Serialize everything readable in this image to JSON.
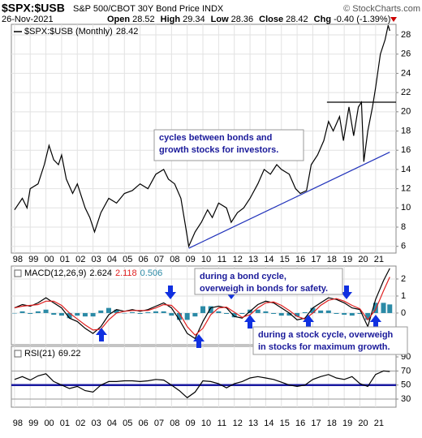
{
  "header": {
    "symbol": "$SPX:$USB",
    "name": "S&P 500/CBOT 30Y Bond Price INDX",
    "copyright": "© StockCharts.com",
    "date": "26-Nov-2021",
    "quote": [
      {
        "label": "Open",
        "value": "28.52"
      },
      {
        "label": "High",
        "value": "29.34"
      },
      {
        "label": "Low",
        "value": "28.36"
      },
      {
        "label": "Close",
        "value": "28.42"
      },
      {
        "label": "Chg",
        "value": "-0.40 (-1.39%)"
      }
    ]
  },
  "chart_data": [
    {
      "type": "line",
      "x": [
        1998.0,
        1998.5,
        1998.8,
        1999.0,
        1999.5,
        1999.9,
        2000.2,
        2000.5,
        2000.8,
        2001.0,
        2001.3,
        2001.7,
        2002.0,
        2002.5,
        2002.8,
        2003.1,
        2003.5,
        2004.0,
        2004.5,
        2005.0,
        2005.5,
        2006.0,
        2006.5,
        2007.0,
        2007.5,
        2007.8,
        2008.2,
        2008.6,
        2008.9,
        2009.1,
        2009.5,
        2009.9,
        2010.3,
        2010.6,
        2011.0,
        2011.5,
        2011.8,
        2012.2,
        2012.6,
        2013.0,
        2013.5,
        2013.9,
        2014.3,
        2014.7,
        2015.0,
        2015.5,
        2015.9,
        2016.2,
        2016.6,
        2016.9,
        2017.3,
        2017.7,
        2018.0,
        2018.3,
        2018.7,
        2018.95,
        2019.3,
        2019.6,
        2019.9,
        2020.1,
        2020.25,
        2020.5,
        2020.8,
        2021.0,
        2021.3,
        2021.6,
        2021.8,
        2021.9
      ],
      "series": [
        {
          "name": "$SPX:$USB (Monthly)",
          "color": "#000000",
          "values": [
            9.8,
            11.0,
            10.0,
            12.0,
            12.5,
            14.5,
            16.5,
            15.0,
            14.5,
            15.5,
            13.0,
            11.5,
            12.5,
            10.0,
            9.0,
            7.5,
            9.5,
            11.0,
            10.5,
            11.5,
            11.8,
            12.5,
            12.0,
            13.5,
            14.0,
            13.0,
            12.5,
            11.0,
            8.0,
            6.0,
            7.5,
            8.5,
            9.8,
            9.0,
            10.5,
            10.0,
            8.5,
            9.5,
            10.0,
            11.0,
            12.5,
            14.0,
            13.5,
            14.5,
            14.0,
            13.5,
            12.0,
            11.5,
            11.8,
            14.5,
            15.5,
            17.0,
            19.0,
            18.0,
            19.5,
            17.0,
            20.5,
            17.5,
            20.5,
            21.0,
            14.8,
            18.0,
            20.5,
            22.5,
            26.0,
            27.5,
            29.0,
            28.42
          ]
        }
      ],
      "xlim": [
        1997.8,
        2022.3
      ],
      "ylim": [
        5.3,
        29.1
      ],
      "xticks": [
        {
          "value": 1998,
          "label": "98"
        },
        {
          "value": 1999,
          "label": "99"
        },
        {
          "value": 2000,
          "label": "00"
        },
        {
          "value": 2001,
          "label": "01"
        },
        {
          "value": 2002,
          "label": "02"
        },
        {
          "value": 2003,
          "label": "03"
        },
        {
          "value": 2004,
          "label": "04"
        },
        {
          "value": 2005,
          "label": "05"
        },
        {
          "value": 2006,
          "label": "06"
        },
        {
          "value": 2007,
          "label": "07"
        },
        {
          "value": 2008,
          "label": "08"
        },
        {
          "value": 2009,
          "label": "09"
        },
        {
          "value": 2010,
          "label": "10"
        },
        {
          "value": 2011,
          "label": "11"
        },
        {
          "value": 2012,
          "label": "12"
        },
        {
          "value": 2013,
          "label": "13"
        },
        {
          "value": 2014,
          "label": "14"
        },
        {
          "value": 2015,
          "label": "15"
        },
        {
          "value": 2016,
          "label": "16"
        },
        {
          "value": 2017,
          "label": "17"
        },
        {
          "value": 2018,
          "label": "18"
        },
        {
          "value": 2019,
          "label": "19"
        },
        {
          "value": 2020,
          "label": "20"
        },
        {
          "value": 2021,
          "label": "21"
        }
      ],
      "yticks": [
        6,
        8,
        10,
        12,
        14,
        16,
        18,
        20,
        22,
        24,
        26,
        28
      ],
      "grid": true,
      "trendlines": [
        {
          "color": "#2233bb",
          "x": [
            2009.1,
            2021.9
          ],
          "y": [
            5.8,
            15.8
          ]
        },
        {
          "color": "#000000",
          "x": [
            2017.9,
            2022.3
          ],
          "y": [
            21,
            21
          ]
        }
      ],
      "annotations": [
        {
          "lines": [
            "cycles between bonds and",
            "growth stocks for investors."
          ]
        }
      ]
    },
    {
      "type": "macd",
      "title": "MACD(12,26,9)",
      "x": [
        1998.0,
        1998.5,
        1999.0,
        1999.5,
        2000.0,
        2000.5,
        2001.0,
        2001.5,
        2002.0,
        2002.5,
        2003.0,
        2003.5,
        2004.0,
        2004.5,
        2005.0,
        2005.5,
        2006.0,
        2006.5,
        2007.0,
        2007.5,
        2008.0,
        2008.5,
        2009.0,
        2009.5,
        2010.0,
        2010.5,
        2011.0,
        2011.5,
        2012.0,
        2012.5,
        2013.0,
        2013.5,
        2014.0,
        2014.5,
        2015.0,
        2015.5,
        2016.0,
        2016.5,
        2017.0,
        2017.5,
        2018.0,
        2018.5,
        2019.0,
        2019.5,
        2020.0,
        2020.5,
        2021.0,
        2021.5,
        2021.9
      ],
      "series": [
        {
          "color": "#000000",
          "kind": "line",
          "values": [
            0.3,
            0.5,
            0.4,
            0.6,
            0.9,
            0.6,
            0.3,
            -0.3,
            -0.5,
            -0.9,
            -1.2,
            -0.8,
            -0.1,
            0.2,
            0.1,
            0.2,
            0.1,
            0.2,
            0.4,
            0.6,
            0.3,
            -0.4,
            -1.2,
            -1.5,
            -0.5,
            0.3,
            0.4,
            0.3,
            -0.2,
            -0.3,
            0.1,
            0.5,
            0.7,
            0.6,
            0.3,
            0.0,
            -0.4,
            -0.3,
            0.3,
            0.6,
            0.9,
            0.8,
            0.6,
            0.3,
            0.2,
            -0.8,
            0.8,
            1.9,
            2.624
          ]
        },
        {
          "color": "#e02020",
          "kind": "line",
          "values": [
            0.3,
            0.4,
            0.45,
            0.5,
            0.7,
            0.7,
            0.45,
            0.0,
            -0.35,
            -0.7,
            -1.0,
            -0.95,
            -0.4,
            0.0,
            0.1,
            0.15,
            0.15,
            0.15,
            0.3,
            0.5,
            0.45,
            0.0,
            -0.8,
            -1.3,
            -0.9,
            -0.1,
            0.3,
            0.35,
            0.05,
            -0.25,
            -0.1,
            0.3,
            0.6,
            0.65,
            0.45,
            0.15,
            -0.2,
            -0.35,
            0.0,
            0.45,
            0.75,
            0.85,
            0.7,
            0.45,
            0.25,
            -0.4,
            0.2,
            1.3,
            2.118
          ]
        },
        {
          "color": "#2b8aa6",
          "kind": "histogram",
          "values": [
            0.0,
            0.1,
            -0.05,
            0.1,
            0.2,
            -0.1,
            -0.15,
            -0.3,
            -0.15,
            -0.2,
            -0.2,
            0.15,
            0.3,
            0.2,
            0.0,
            0.05,
            -0.05,
            0.05,
            0.1,
            0.1,
            -0.15,
            -0.4,
            -0.4,
            -0.2,
            0.4,
            0.4,
            0.1,
            -0.05,
            -0.25,
            -0.05,
            0.2,
            0.2,
            0.1,
            -0.05,
            -0.15,
            -0.15,
            -0.2,
            0.05,
            0.3,
            0.15,
            0.15,
            -0.05,
            -0.1,
            -0.15,
            -0.05,
            -0.4,
            0.6,
            0.6,
            0.506
          ]
        }
      ],
      "xlim": [
        1997.8,
        2022.3
      ],
      "ylim": [
        -1.86,
        2.76
      ],
      "yticks": [
        0,
        1,
        2
      ],
      "grid": true,
      "annotations": [
        {
          "lines": [
            "during a bond cycle,",
            "overweigh in bonds for safety."
          ]
        },
        {
          "lines": [
            "during a stock cycle, overweigh",
            "in stocks for maximum growth."
          ]
        }
      ]
    },
    {
      "type": "line",
      "title": "RSI(21)",
      "x": [
        1998.0,
        1998.5,
        1999.0,
        1999.5,
        2000.0,
        2000.5,
        2001.0,
        2001.5,
        2002.0,
        2002.5,
        2003.0,
        2003.5,
        2004.0,
        2004.5,
        2005.0,
        2005.5,
        2006.0,
        2006.5,
        2007.0,
        2007.5,
        2008.0,
        2008.5,
        2009.0,
        2009.5,
        2010.0,
        2010.5,
        2011.0,
        2011.5,
        2012.0,
        2012.5,
        2013.0,
        2013.5,
        2014.0,
        2014.5,
        2015.0,
        2015.5,
        2016.0,
        2016.5,
        2017.0,
        2017.5,
        2018.0,
        2018.5,
        2019.0,
        2019.5,
        2020.0,
        2020.5,
        2021.0,
        2021.5,
        2021.9
      ],
      "series": [
        {
          "color": "#000000",
          "values": [
            58,
            62,
            57,
            63,
            66,
            55,
            50,
            45,
            48,
            42,
            40,
            50,
            55,
            55,
            56,
            56,
            55,
            56,
            58,
            57,
            50,
            42,
            32,
            40,
            56,
            55,
            52,
            46,
            52,
            55,
            60,
            62,
            60,
            58,
            54,
            50,
            48,
            50,
            58,
            62,
            65,
            60,
            58,
            62,
            52,
            48,
            65,
            70,
            69.22
          ]
        }
      ],
      "xlim": [
        1997.8,
        2022.3
      ],
      "ylim": [
        18.5,
        105
      ],
      "yticks": [
        30,
        50,
        70,
        90
      ],
      "grid": false,
      "reference_lines": [
        {
          "value": 30,
          "color": "#999999",
          "width": 1
        },
        {
          "value": 50,
          "color": "#1a1aa0",
          "width": 2.5
        },
        {
          "value": 70,
          "color": "#999999",
          "width": 1
        }
      ],
      "xticks": [
        {
          "value": 1998,
          "label": "98"
        },
        {
          "value": 1999,
          "label": "99"
        },
        {
          "value": 2000,
          "label": "00"
        },
        {
          "value": 2001,
          "label": "01"
        },
        {
          "value": 2002,
          "label": "02"
        },
        {
          "value": 2003,
          "label": "03"
        },
        {
          "value": 2004,
          "label": "04"
        },
        {
          "value": 2005,
          "label": "05"
        },
        {
          "value": 2006,
          "label": "06"
        },
        {
          "value": 2007,
          "label": "07"
        },
        {
          "value": 2008,
          "label": "08"
        },
        {
          "value": 2009,
          "label": "09"
        },
        {
          "value": 2010,
          "label": "10"
        },
        {
          "value": 2011,
          "label": "11"
        },
        {
          "value": 2012,
          "label": "12"
        },
        {
          "value": 2013,
          "label": "13"
        },
        {
          "value": 2014,
          "label": "14"
        },
        {
          "value": 2015,
          "label": "15"
        },
        {
          "value": 2016,
          "label": "16"
        },
        {
          "value": 2017,
          "label": "17"
        },
        {
          "value": 2018,
          "label": "18"
        },
        {
          "value": 2019,
          "label": "19"
        },
        {
          "value": 2020,
          "label": "20"
        },
        {
          "value": 2021,
          "label": "21"
        }
      ]
    }
  ]
}
